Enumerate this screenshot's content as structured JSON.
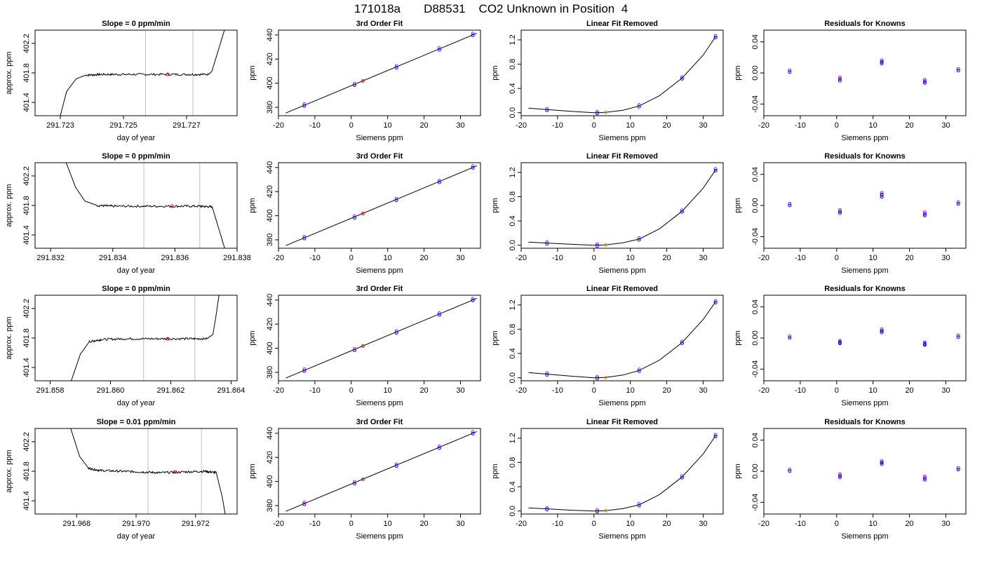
{
  "page": {
    "title_parts": [
      "171018a",
      "D88531",
      "CO2 Unknown in Position  4"
    ]
  },
  "colors": {
    "line": "#000000",
    "marker_blue": "#0000ff",
    "marker_purple": "#a020f0",
    "marker_red": "#ff0000",
    "marker_orange": "#ff8c00",
    "vline": "#bebebe",
    "frame": "#000000"
  },
  "chart_data": [
    {
      "type": "line",
      "row": 1,
      "col": 1,
      "title": "Slope =  0  ppm/min",
      "xlabel": "day of year",
      "ylabel": "approx. ppm",
      "xlim": [
        291.7222,
        291.7286
      ],
      "ylim": [
        401.22,
        402.38
      ],
      "xticks": [
        291.723,
        291.725,
        291.727
      ],
      "xtick_labels": [
        "291.723",
        "291.725",
        "291.727"
      ],
      "yticks": [
        401.4,
        401.8,
        402.2
      ],
      "ytick_labels": [
        "401.4",
        "401.8",
        "402.2"
      ],
      "vlines": [
        291.7257,
        291.7272
      ],
      "series": [
        {
          "x": [
            291.723,
            291.7232,
            291.7235,
            291.7238,
            291.7243,
            291.725,
            291.726,
            291.727,
            291.7277,
            291.7278,
            291.728,
            291.7282
          ],
          "y": [
            401.22,
            401.55,
            401.72,
            401.77,
            401.78,
            401.78,
            401.78,
            401.78,
            401.78,
            401.82,
            402.1,
            402.38
          ]
        }
      ],
      "markers": [
        {
          "x": 291.7264,
          "y": 401.78,
          "color": "red"
        }
      ]
    },
    {
      "type": "scatter",
      "row": 1,
      "col": 2,
      "title": "3rd Order Fit",
      "xlabel": "Siemens ppm",
      "ylabel": "ppm",
      "xlim": [
        -20,
        35.5
      ],
      "ylim": [
        373,
        444
      ],
      "xticks": [
        -20,
        -10,
        0,
        10,
        20,
        30
      ],
      "xtick_labels": [
        "-20",
        "-10",
        "0",
        "10",
        "20",
        "30"
      ],
      "yticks": [
        380,
        400,
        420,
        440
      ],
      "ytick_labels": [
        "380",
        "400",
        "420",
        "440"
      ],
      "fit_line": {
        "x": [
          -18,
          34.5
        ],
        "y": [
          375.2,
          441.4
        ]
      },
      "points": {
        "x": [
          -12.9,
          0.9,
          12.4,
          24.2,
          33.4
        ],
        "y": [
          381.7,
          398.8,
          413.4,
          428.3,
          440.3
        ]
      },
      "red_point": {
        "x": 3.2,
        "y": 401.8
      }
    },
    {
      "type": "line",
      "row": 1,
      "col": 3,
      "title": "Linear Fit Removed",
      "xlabel": "Siemens ppm",
      "ylabel": "ppm",
      "xlim": [
        -20,
        35.5
      ],
      "ylim": [
        -0.05,
        1.36
      ],
      "xticks": [
        -20,
        -10,
        0,
        10,
        20,
        30
      ],
      "xtick_labels": [
        "-20",
        "-10",
        "0",
        "10",
        "20",
        "30"
      ],
      "yticks": [
        0.0,
        0.4,
        0.8,
        1.2
      ],
      "ytick_labels": [
        "0.0",
        "0.4",
        "0.8",
        "1.2"
      ],
      "curve": {
        "x": [
          -18,
          -12.9,
          -6,
          0,
          3.2,
          8,
          12.4,
          18,
          24.2,
          30,
          33.4
        ],
        "y": [
          0.075,
          0.05,
          0.02,
          0.0,
          0.005,
          0.04,
          0.11,
          0.28,
          0.57,
          0.95,
          1.25
        ]
      },
      "points": {
        "x": [
          -12.9,
          0.9,
          12.4,
          24.2,
          33.4
        ],
        "y": [
          0.05,
          0.0,
          0.11,
          0.57,
          1.25
        ]
      },
      "orange_point": {
        "x": 3.2,
        "y": 0.005
      }
    },
    {
      "type": "scatter",
      "row": 1,
      "col": 4,
      "title": "Residuals for Knowns",
      "xlabel": "Siemens ppm",
      "ylabel": "ppm",
      "xlim": [
        -20,
        35.5
      ],
      "ylim": [
        -0.055,
        0.055
      ],
      "xticks": [
        -20,
        -10,
        0,
        10,
        20,
        30
      ],
      "xtick_labels": [
        "-20",
        "-10",
        "0",
        "10",
        "20",
        "30"
      ],
      "yticks": [
        -0.04,
        0.0,
        0.04
      ],
      "ytick_labels": [
        "-0.04",
        "0.00",
        "0.04"
      ],
      "points": {
        "x": [
          -12.9,
          0.9,
          0.9,
          12.4,
          12.4,
          24.2,
          24.2,
          33.4
        ],
        "y": [
          0.002,
          -0.007,
          -0.009,
          0.013,
          0.015,
          -0.01,
          -0.012,
          0.004
        ]
      }
    },
    {
      "type": "line",
      "row": 2,
      "col": 1,
      "title": "Slope =  0  ppm/min",
      "xlabel": "day of year",
      "ylabel": "approx. ppm",
      "xlim": [
        291.8315,
        291.838
      ],
      "ylim": [
        401.22,
        402.38
      ],
      "xticks": [
        291.832,
        291.834,
        291.836,
        291.838
      ],
      "xtick_labels": [
        "291.832",
        "291.834",
        "291.836",
        "291.838"
      ],
      "yticks": [
        401.4,
        401.8,
        402.2
      ],
      "ytick_labels": [
        "401.4",
        "401.8",
        "402.2"
      ],
      "vlines": [
        291.835,
        291.8368
      ],
      "series": [
        {
          "x": [
            291.8325,
            291.8328,
            291.8331,
            291.8335,
            291.834,
            291.835,
            291.836,
            291.8368,
            291.8372,
            291.8374,
            291.8376
          ],
          "y": [
            402.38,
            402.05,
            401.86,
            401.8,
            401.79,
            401.79,
            401.79,
            401.79,
            401.78,
            401.5,
            401.22
          ]
        }
      ],
      "markers": [
        {
          "x": 291.8359,
          "y": 401.79,
          "color": "red"
        }
      ]
    },
    {
      "type": "scatter",
      "row": 2,
      "col": 2,
      "title": "3rd Order Fit",
      "xlabel": "Siemens ppm",
      "ylabel": "ppm",
      "xlim": [
        -20,
        35.5
      ],
      "ylim": [
        373,
        444
      ],
      "xticks": [
        -20,
        -10,
        0,
        10,
        20,
        30
      ],
      "xtick_labels": [
        "-20",
        "-10",
        "0",
        "10",
        "20",
        "30"
      ],
      "yticks": [
        380,
        400,
        420,
        440
      ],
      "ytick_labels": [
        "380",
        "400",
        "420",
        "440"
      ],
      "fit_line": {
        "x": [
          -18,
          34.5
        ],
        "y": [
          375.2,
          441.4
        ]
      },
      "points": {
        "x": [
          -12.9,
          0.9,
          12.4,
          24.2,
          33.4
        ],
        "y": [
          381.7,
          398.8,
          413.4,
          428.3,
          440.3
        ]
      },
      "red_point": {
        "x": 3.2,
        "y": 401.8
      }
    },
    {
      "type": "line",
      "row": 2,
      "col": 3,
      "title": "Linear Fit Removed",
      "xlabel": "Siemens ppm",
      "ylabel": "ppm",
      "xlim": [
        -20,
        35.5
      ],
      "ylim": [
        -0.05,
        1.36
      ],
      "xticks": [
        -20,
        -10,
        0,
        10,
        20,
        30
      ],
      "xtick_labels": [
        "-20",
        "-10",
        "0",
        "10",
        "20",
        "30"
      ],
      "yticks": [
        0.0,
        0.4,
        0.8,
        1.2
      ],
      "ytick_labels": [
        "0.0",
        "0.4",
        "0.8",
        "1.2"
      ],
      "curve": {
        "x": [
          -18,
          -12.9,
          -6,
          0,
          3.2,
          8,
          12.4,
          18,
          24.2,
          30,
          33.4
        ],
        "y": [
          0.05,
          0.035,
          0.015,
          0.0,
          0.005,
          0.04,
          0.1,
          0.27,
          0.56,
          0.94,
          1.24
        ]
      },
      "points": {
        "x": [
          -12.9,
          0.9,
          12.4,
          24.2,
          33.4
        ],
        "y": [
          0.035,
          0.0,
          0.1,
          0.56,
          1.24
        ]
      },
      "orange_point": {
        "x": 3.2,
        "y": 0.005
      }
    },
    {
      "type": "scatter",
      "row": 2,
      "col": 4,
      "title": "Residuals for Knowns",
      "xlabel": "Siemens ppm",
      "ylabel": "ppm",
      "xlim": [
        -20,
        35.5
      ],
      "ylim": [
        -0.055,
        0.055
      ],
      "xticks": [
        -20,
        -10,
        0,
        10,
        20,
        30
      ],
      "xtick_labels": [
        "-20",
        "-10",
        "0",
        "10",
        "20",
        "30"
      ],
      "yticks": [
        -0.04,
        0.0,
        0.04
      ],
      "ytick_labels": [
        "-0.04",
        "0.00",
        "0.04"
      ],
      "points": {
        "x": [
          -12.9,
          0.9,
          0.9,
          12.4,
          12.4,
          24.2,
          24.2,
          33.4
        ],
        "y": [
          0.001,
          -0.007,
          -0.009,
          0.012,
          0.015,
          -0.01,
          -0.012,
          0.003
        ]
      }
    },
    {
      "type": "line",
      "row": 3,
      "col": 1,
      "title": "Slope =  0  ppm/min",
      "xlabel": "day of year",
      "ylabel": "approx. ppm",
      "xlim": [
        291.8575,
        291.8642
      ],
      "ylim": [
        401.22,
        402.38
      ],
      "xticks": [
        291.858,
        291.86,
        291.862,
        291.864
      ],
      "xtick_labels": [
        "291.858",
        "291.860",
        "291.862",
        "291.864"
      ],
      "yticks": [
        401.4,
        401.8,
        402.2
      ],
      "ytick_labels": [
        "401.4",
        "401.8",
        "402.2"
      ],
      "vlines": [
        291.8611,
        291.8628
      ],
      "series": [
        {
          "x": [
            291.8587,
            291.859,
            291.8593,
            291.8597,
            291.8605,
            291.8615,
            291.8625,
            291.8632,
            291.8634,
            291.8635,
            291.8636
          ],
          "y": [
            401.22,
            401.58,
            401.75,
            401.78,
            401.79,
            401.79,
            401.79,
            401.79,
            401.85,
            402.1,
            402.38
          ]
        }
      ],
      "markers": [
        {
          "x": 291.8619,
          "y": 401.79,
          "color": "red"
        }
      ]
    },
    {
      "type": "scatter",
      "row": 3,
      "col": 2,
      "title": "3rd Order Fit",
      "xlabel": "Siemens ppm",
      "ylabel": "ppm",
      "xlim": [
        -20,
        35.5
      ],
      "ylim": [
        373,
        444
      ],
      "xticks": [
        -20,
        -10,
        0,
        10,
        20,
        30
      ],
      "xtick_labels": [
        "-20",
        "-10",
        "0",
        "10",
        "20",
        "30"
      ],
      "yticks": [
        380,
        400,
        420,
        440
      ],
      "ytick_labels": [
        "380",
        "400",
        "420",
        "440"
      ],
      "fit_line": {
        "x": [
          -18,
          34.5
        ],
        "y": [
          375.2,
          441.4
        ]
      },
      "points": {
        "x": [
          -12.9,
          0.9,
          12.4,
          24.2,
          33.4
        ],
        "y": [
          381.7,
          398.8,
          413.4,
          428.3,
          440.3
        ]
      },
      "red_point": {
        "x": 3.2,
        "y": 401.8
      }
    },
    {
      "type": "line",
      "row": 3,
      "col": 3,
      "title": "Linear Fit Removed",
      "xlabel": "Siemens ppm",
      "ylabel": "ppm",
      "xlim": [
        -20,
        35.5
      ],
      "ylim": [
        -0.05,
        1.36
      ],
      "xticks": [
        -20,
        -10,
        0,
        10,
        20,
        30
      ],
      "xtick_labels": [
        "-20",
        "-10",
        "0",
        "10",
        "20",
        "30"
      ],
      "yticks": [
        0.0,
        0.4,
        0.8,
        1.2
      ],
      "ytick_labels": [
        "0.0",
        "0.4",
        "0.8",
        "1.2"
      ],
      "curve": {
        "x": [
          -18,
          -12.9,
          -6,
          0,
          3.2,
          8,
          12.4,
          18,
          24.2,
          30,
          33.4
        ],
        "y": [
          0.085,
          0.06,
          0.025,
          0.0,
          0.005,
          0.045,
          0.12,
          0.29,
          0.58,
          0.96,
          1.25
        ]
      },
      "points": {
        "x": [
          -12.9,
          0.9,
          12.4,
          24.2,
          33.4
        ],
        "y": [
          0.06,
          0.0,
          0.12,
          0.58,
          1.25
        ]
      },
      "orange_point": {
        "x": 3.2,
        "y": 0.005
      }
    },
    {
      "type": "scatter",
      "row": 3,
      "col": 4,
      "title": "Residuals for Knowns",
      "xlabel": "Siemens ppm",
      "ylabel": "ppm",
      "xlim": [
        -20,
        35.5
      ],
      "ylim": [
        -0.055,
        0.055
      ],
      "xticks": [
        -20,
        -10,
        0,
        10,
        20,
        30
      ],
      "xtick_labels": [
        "-20",
        "-10",
        "0",
        "10",
        "20",
        "30"
      ],
      "yticks": [
        -0.04,
        0.0,
        0.04
      ],
      "ytick_labels": [
        "-0.04",
        "0.00",
        "0.04"
      ],
      "points": {
        "x": [
          -12.9,
          0.9,
          0.9,
          12.4,
          12.4,
          24.2,
          24.2,
          33.4
        ],
        "y": [
          0.001,
          -0.005,
          -0.006,
          0.008,
          0.01,
          -0.007,
          -0.008,
          0.002
        ]
      }
    },
    {
      "type": "line",
      "row": 4,
      "col": 1,
      "title": "Slope =  0.01  ppm/min",
      "xlabel": "day of year",
      "ylabel": "approx. ppm",
      "xlim": [
        291.9666,
        291.9734
      ],
      "ylim": [
        401.22,
        402.38
      ],
      "xticks": [
        291.968,
        291.97,
        291.972
      ],
      "xtick_labels": [
        "291.968",
        "291.970",
        "291.972"
      ],
      "yticks": [
        401.4,
        401.8,
        402.2
      ],
      "ytick_labels": [
        "401.4",
        "401.8",
        "402.2"
      ],
      "vlines": [
        291.9704,
        291.9722
      ],
      "series": [
        {
          "x": [
            291.9678,
            291.9681,
            291.9684,
            291.9688,
            291.9695,
            291.9702,
            291.9708,
            291.9716,
            291.9723,
            291.9727,
            291.9729,
            291.973
          ],
          "y": [
            402.38,
            402.0,
            401.84,
            401.81,
            401.8,
            401.79,
            401.78,
            401.79,
            401.8,
            401.78,
            401.45,
            401.22
          ]
        }
      ],
      "markers": [
        {
          "x": 291.9713,
          "y": 401.79,
          "color": "red"
        }
      ]
    },
    {
      "type": "scatter",
      "row": 4,
      "col": 2,
      "title": "3rd Order Fit",
      "xlabel": "Siemens ppm",
      "ylabel": "ppm",
      "xlim": [
        -20,
        35.5
      ],
      "ylim": [
        373,
        444
      ],
      "xticks": [
        -20,
        -10,
        0,
        10,
        20,
        30
      ],
      "xtick_labels": [
        "-20",
        "-10",
        "0",
        "10",
        "20",
        "30"
      ],
      "yticks": [
        380,
        400,
        420,
        440
      ],
      "ytick_labels": [
        "380",
        "400",
        "420",
        "440"
      ],
      "fit_line": {
        "x": [
          -18,
          34.5
        ],
        "y": [
          375.2,
          441.4
        ]
      },
      "points": {
        "x": [
          -12.9,
          0.9,
          12.4,
          24.2,
          33.4
        ],
        "y": [
          381.7,
          398.8,
          413.4,
          428.3,
          440.3
        ]
      },
      "red_point": {
        "x": 3.2,
        "y": 401.8
      }
    },
    {
      "type": "line",
      "row": 4,
      "col": 3,
      "title": "Linear Fit Removed",
      "xlabel": "Siemens ppm",
      "ylabel": "ppm",
      "xlim": [
        -20,
        35.5
      ],
      "ylim": [
        -0.05,
        1.36
      ],
      "xticks": [
        -20,
        -10,
        0,
        10,
        20,
        30
      ],
      "xtick_labels": [
        "-20",
        "-10",
        "0",
        "10",
        "20",
        "30"
      ],
      "yticks": [
        0.0,
        0.4,
        0.8,
        1.2
      ],
      "ytick_labels": [
        "0.0",
        "0.4",
        "0.8",
        "1.2"
      ],
      "curve": {
        "x": [
          -18,
          -12.9,
          -6,
          0,
          3.2,
          8,
          12.4,
          18,
          24.2,
          30,
          33.4
        ],
        "y": [
          0.05,
          0.035,
          0.012,
          0.0,
          0.005,
          0.04,
          0.1,
          0.27,
          0.56,
          0.94,
          1.24
        ]
      },
      "points": {
        "x": [
          -12.9,
          0.9,
          12.4,
          24.2,
          33.4
        ],
        "y": [
          0.035,
          0.0,
          0.1,
          0.56,
          1.24
        ]
      },
      "orange_point": {
        "x": 3.2,
        "y": 0.005
      }
    },
    {
      "type": "scatter",
      "row": 4,
      "col": 4,
      "title": "Residuals for Knowns",
      "xlabel": "Siemens ppm",
      "ylabel": "ppm",
      "xlim": [
        -20,
        35.5
      ],
      "ylim": [
        -0.055,
        0.055
      ],
      "xticks": [
        -20,
        -10,
        0,
        10,
        20,
        30
      ],
      "xtick_labels": [
        "-20",
        "-10",
        "0",
        "10",
        "20",
        "30"
      ],
      "yticks": [
        -0.04,
        0.0,
        0.04
      ],
      "ytick_labels": [
        "-0.04",
        "0.00",
        "0.04"
      ],
      "points": {
        "x": [
          -12.9,
          0.9,
          0.9,
          12.4,
          12.4,
          24.2,
          24.2,
          33.4
        ],
        "y": [
          0.001,
          -0.005,
          -0.007,
          0.01,
          0.012,
          -0.008,
          -0.01,
          0.003
        ]
      }
    }
  ]
}
